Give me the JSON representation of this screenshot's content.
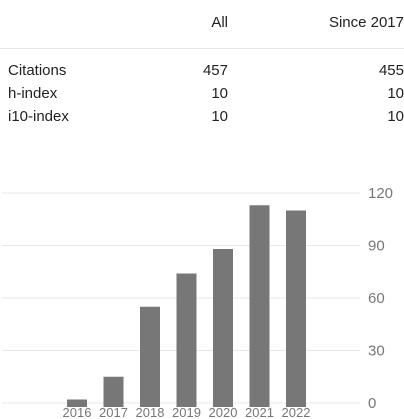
{
  "stats": {
    "header": {
      "label": "",
      "all": "All",
      "since": "Since 2017"
    },
    "rows": [
      {
        "label": "Citations",
        "all": "457",
        "since": "455"
      },
      {
        "label": "h-index",
        "all": "10",
        "since": "10"
      },
      {
        "label": "i10-index",
        "all": "10",
        "since": "10"
      }
    ]
  },
  "chart_data": {
    "type": "bar",
    "categories": [
      "2016",
      "2017",
      "2018",
      "2019",
      "2020",
      "2021",
      "2022"
    ],
    "values": [
      2,
      15,
      55,
      74,
      88,
      113,
      110
    ],
    "title": "",
    "xlabel": "",
    "ylabel": "",
    "ylim": [
      0,
      120
    ],
    "yticks": [
      "0",
      "30",
      "60",
      "90",
      "120"
    ],
    "grid": true,
    "colors": {
      "bar": "#777777",
      "grid": "#e8e8e8",
      "tick": "#777777"
    }
  }
}
